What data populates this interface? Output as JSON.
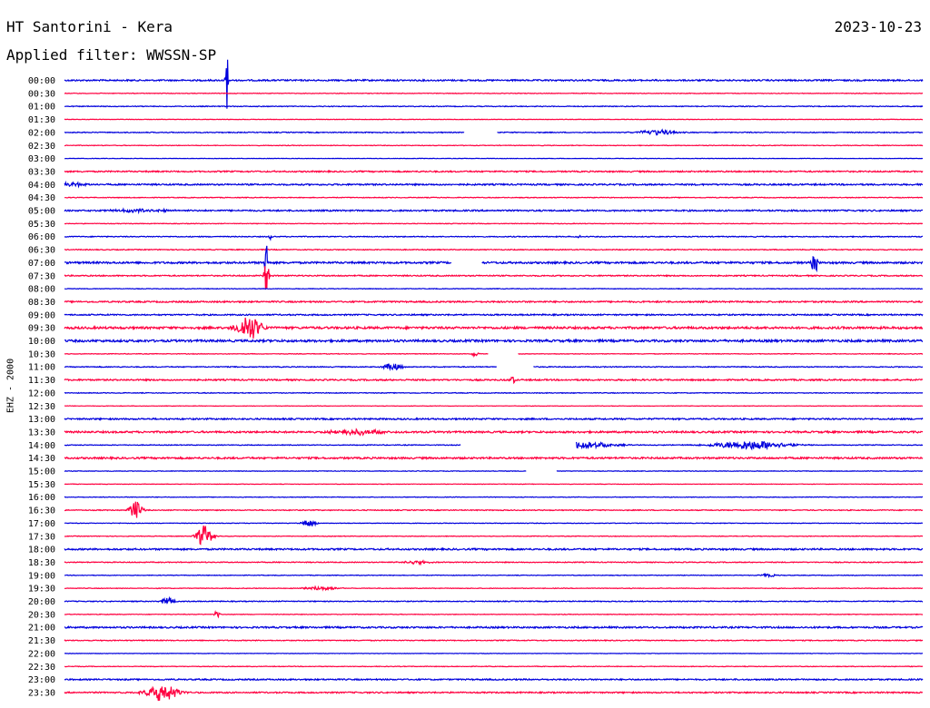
{
  "header": {
    "title": "HT Santorini - Kera",
    "date": "2023-10-23",
    "filter_label": "Applied filter: WWSSN-SP"
  },
  "channel_label": "EHZ - 2000",
  "chart_data": {
    "type": "line",
    "title": "HT Santorini - Kera",
    "subtitle": "Applied filter: WWSSN-SP",
    "ylabel": "EHZ - 2000",
    "xlabel": "",
    "grid": false,
    "colors": {
      "even": "#0000dd",
      "odd": "#ff0040"
    },
    "rows": [
      {
        "time": "00:00",
        "noise": 1.0,
        "events": [
          {
            "x": 0.189,
            "amp": 40,
            "width": 0.002
          }
        ],
        "gaps": []
      },
      {
        "time": "00:30",
        "noise": 0.4,
        "events": [],
        "gaps": []
      },
      {
        "time": "01:00",
        "noise": 0.5,
        "events": [],
        "gaps": []
      },
      {
        "time": "01:30",
        "noise": 0.3,
        "events": [],
        "gaps": []
      },
      {
        "time": "02:00",
        "noise": 0.6,
        "events": [
          {
            "x": 0.69,
            "amp": 3,
            "width": 0.03
          }
        ],
        "gaps": [
          [
            0.466,
            0.504
          ]
        ]
      },
      {
        "time": "02:30",
        "noise": 0.4,
        "events": [],
        "gaps": []
      },
      {
        "time": "03:00",
        "noise": 0.3,
        "events": [],
        "gaps": []
      },
      {
        "time": "03:30",
        "noise": 0.9,
        "events": [],
        "gaps": []
      },
      {
        "time": "04:00",
        "noise": 1.0,
        "events": [
          {
            "x": 0.01,
            "amp": 2,
            "width": 0.02
          }
        ],
        "gaps": []
      },
      {
        "time": "04:30",
        "noise": 0.5,
        "events": [],
        "gaps": []
      },
      {
        "time": "05:00",
        "noise": 1.0,
        "events": [
          {
            "x": 0.09,
            "amp": 2,
            "width": 0.04
          }
        ],
        "gaps": []
      },
      {
        "time": "05:30",
        "noise": 0.4,
        "events": [],
        "gaps": []
      },
      {
        "time": "06:00",
        "noise": 0.6,
        "events": [
          {
            "x": 0.24,
            "amp": 3,
            "width": 0.003
          },
          {
            "x": 0.6,
            "amp": 2,
            "width": 0.004
          }
        ],
        "gaps": []
      },
      {
        "time": "06:30",
        "noise": 0.6,
        "events": [],
        "gaps": []
      },
      {
        "time": "07:00",
        "noise": 1.3,
        "events": [
          {
            "x": 0.235,
            "amp": 62,
            "width": 0.002
          },
          {
            "x": 0.874,
            "amp": 16,
            "width": 0.004
          }
        ],
        "gaps": [
          [
            0.451,
            0.486
          ]
        ]
      },
      {
        "time": "07:30",
        "noise": 0.8,
        "events": [
          {
            "x": 0.235,
            "amp": 20,
            "width": 0.004
          }
        ],
        "gaps": []
      },
      {
        "time": "08:00",
        "noise": 0.4,
        "events": [],
        "gaps": []
      },
      {
        "time": "08:30",
        "noise": 1.0,
        "events": [],
        "gaps": []
      },
      {
        "time": "09:00",
        "noise": 0.9,
        "events": [],
        "gaps": []
      },
      {
        "time": "09:30",
        "noise": 1.5,
        "events": [
          {
            "x": 0.215,
            "amp": 14,
            "width": 0.02
          }
        ],
        "gaps": []
      },
      {
        "time": "10:00",
        "noise": 1.5,
        "events": [],
        "gaps": []
      },
      {
        "time": "10:30",
        "noise": 0.4,
        "events": [
          {
            "x": 0.478,
            "amp": 3,
            "width": 0.006
          }
        ],
        "gaps": [
          [
            0.494,
            0.528
          ]
        ]
      },
      {
        "time": "11:00",
        "noise": 0.6,
        "events": [
          {
            "x": 0.382,
            "amp": 4,
            "width": 0.015
          }
        ],
        "gaps": [
          [
            0.504,
            0.546
          ]
        ]
      },
      {
        "time": "11:30",
        "noise": 1.0,
        "events": [
          {
            "x": 0.522,
            "amp": 4,
            "width": 0.005
          }
        ],
        "gaps": []
      },
      {
        "time": "12:00",
        "noise": 0.5,
        "events": [],
        "gaps": []
      },
      {
        "time": "12:30",
        "noise": 0.3,
        "events": [],
        "gaps": []
      },
      {
        "time": "13:00",
        "noise": 1.0,
        "events": [],
        "gaps": []
      },
      {
        "time": "13:30",
        "noise": 1.2,
        "events": [
          {
            "x": 0.34,
            "amp": 3,
            "width": 0.04
          }
        ],
        "gaps": []
      },
      {
        "time": "14:00",
        "noise": 0.5,
        "events": [
          {
            "x": 0.59,
            "amp": 5,
            "width": 0.06
          },
          {
            "x": 0.8,
            "amp": 5,
            "width": 0.06
          }
        ],
        "gaps": [
          [
            0.462,
            0.596
          ]
        ]
      },
      {
        "time": "14:30",
        "noise": 1.2,
        "events": [],
        "gaps": []
      },
      {
        "time": "15:00",
        "noise": 0.4,
        "events": [],
        "gaps": [
          [
            0.538,
            0.573
          ]
        ]
      },
      {
        "time": "15:30",
        "noise": 0.3,
        "events": [],
        "gaps": []
      },
      {
        "time": "16:00",
        "noise": 0.4,
        "events": [],
        "gaps": []
      },
      {
        "time": "16:30",
        "noise": 0.6,
        "events": [
          {
            "x": 0.083,
            "amp": 11,
            "width": 0.01
          }
        ],
        "gaps": []
      },
      {
        "time": "17:00",
        "noise": 0.4,
        "events": [
          {
            "x": 0.285,
            "amp": 5,
            "width": 0.01
          }
        ],
        "gaps": []
      },
      {
        "time": "17:30",
        "noise": 0.4,
        "events": [
          {
            "x": 0.163,
            "amp": 12,
            "width": 0.012
          }
        ],
        "gaps": []
      },
      {
        "time": "18:00",
        "noise": 1.1,
        "events": [],
        "gaps": []
      },
      {
        "time": "18:30",
        "noise": 0.6,
        "events": [
          {
            "x": 0.41,
            "amp": 2,
            "width": 0.02
          }
        ],
        "gaps": []
      },
      {
        "time": "19:00",
        "noise": 0.4,
        "events": [
          {
            "x": 0.82,
            "amp": 3,
            "width": 0.01
          }
        ],
        "gaps": []
      },
      {
        "time": "19:30",
        "noise": 0.4,
        "events": [
          {
            "x": 0.3,
            "amp": 2,
            "width": 0.03
          }
        ],
        "gaps": []
      },
      {
        "time": "20:00",
        "noise": 0.6,
        "events": [
          {
            "x": 0.121,
            "amp": 5,
            "width": 0.01
          }
        ],
        "gaps": []
      },
      {
        "time": "20:30",
        "noise": 0.4,
        "events": [
          {
            "x": 0.178,
            "amp": 4,
            "width": 0.005
          }
        ],
        "gaps": []
      },
      {
        "time": "21:00",
        "noise": 1.1,
        "events": [],
        "gaps": []
      },
      {
        "time": "21:30",
        "noise": 0.6,
        "events": [],
        "gaps": []
      },
      {
        "time": "22:00",
        "noise": 0.3,
        "events": [],
        "gaps": []
      },
      {
        "time": "22:30",
        "noise": 0.4,
        "events": [],
        "gaps": []
      },
      {
        "time": "23:00",
        "noise": 0.9,
        "events": [],
        "gaps": []
      },
      {
        "time": "23:30",
        "noise": 0.9,
        "events": [
          {
            "x": 0.114,
            "amp": 10,
            "width": 0.025
          }
        ],
        "gaps": []
      }
    ]
  }
}
